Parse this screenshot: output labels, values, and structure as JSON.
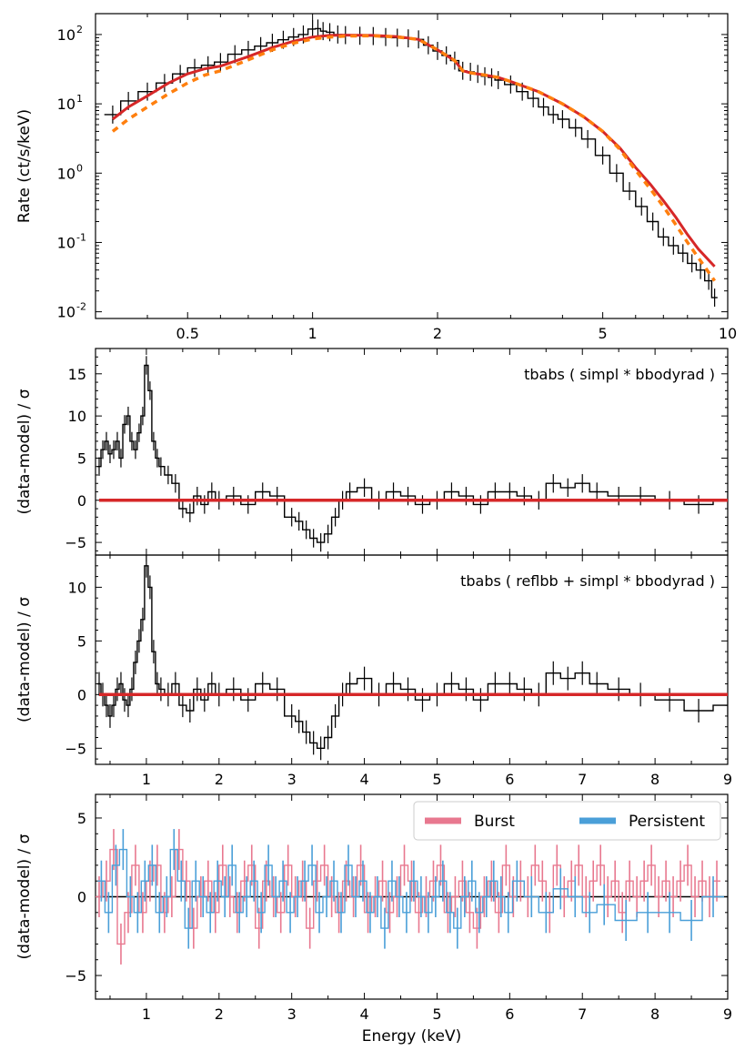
{
  "chart_data": [
    {
      "panel": "spectrum",
      "type": "line",
      "xscale": "log",
      "yscale": "log",
      "xlim": [
        0.3,
        10
      ],
      "ylim": [
        0.008,
        200
      ],
      "ylabel": "Rate (ct/s/keV)",
      "xlabel": "",
      "x_tick_labels": [
        "0.5",
        "1",
        "2",
        "5",
        "10"
      ],
      "x_ticks": [
        0.5,
        1,
        2,
        5,
        10
      ],
      "y_tick_labels": [
        "10",
        "10",
        "10",
        "10",
        "10"
      ],
      "y_tick_exponents": [
        "-2",
        "-1",
        "0",
        "1",
        "2"
      ],
      "y_ticks": [
        0.01,
        0.1,
        1,
        10,
        100
      ],
      "series": [
        {
          "style": "black-steps-with-errorbars",
          "color": "#000000",
          "x": [
            0.33,
            0.36,
            0.4,
            0.44,
            0.48,
            0.52,
            0.56,
            0.6,
            0.65,
            0.7,
            0.75,
            0.8,
            0.85,
            0.9,
            0.95,
            1.0,
            1.03,
            1.06,
            1.1,
            1.15,
            1.2,
            1.3,
            1.4,
            1.5,
            1.6,
            1.7,
            1.8,
            1.9,
            2.0,
            2.1,
            2.2,
            2.3,
            2.4,
            2.5,
            2.6,
            2.7,
            2.8,
            3.0,
            3.2,
            3.4,
            3.6,
            3.8,
            4.0,
            4.3,
            4.6,
            5.0,
            5.4,
            5.8,
            6.2,
            6.6,
            7.0,
            7.4,
            7.8,
            8.2,
            8.6,
            9.0,
            9.3
          ],
          "y": [
            7,
            11,
            15,
            20,
            27,
            33,
            36,
            40,
            52,
            60,
            68,
            76,
            84,
            92,
            100,
            120,
            122,
            112,
            108,
            100,
            98,
            96,
            95,
            92,
            90,
            88,
            85,
            70,
            58,
            50,
            42,
            30,
            29,
            27,
            25,
            24,
            22,
            19,
            15,
            12,
            9,
            7,
            6,
            4.5,
            3.1,
            1.8,
            1.0,
            0.55,
            0.33,
            0.2,
            0.12,
            0.09,
            0.07,
            0.05,
            0.04,
            0.028,
            0.016
          ]
        },
        {
          "style": "red-solid-model",
          "color": "#d62728",
          "x": [
            0.33,
            0.36,
            0.4,
            0.45,
            0.5,
            0.55,
            0.6,
            0.7,
            0.8,
            0.9,
            1.0,
            1.1,
            1.2,
            1.4,
            1.6,
            1.8,
            2.0,
            2.2,
            2.3,
            2.4,
            2.6,
            2.8,
            3.0,
            3.5,
            4.0,
            4.5,
            5.0,
            5.5,
            6.0,
            6.5,
            7.0,
            7.5,
            8.0,
            8.5,
            9.3
          ],
          "y": [
            6,
            9,
            13,
            20,
            27,
            32,
            35,
            48,
            65,
            80,
            92,
            97,
            98,
            97,
            93,
            85,
            60,
            42,
            30,
            28,
            26,
            24,
            21,
            15,
            10,
            6.5,
            4.0,
            2.3,
            1.2,
            0.7,
            0.4,
            0.23,
            0.13,
            0.08,
            0.045
          ]
        },
        {
          "style": "orange-dashed-model",
          "color": "#ff7f0e",
          "x": [
            0.33,
            0.36,
            0.4,
            0.45,
            0.5,
            0.55,
            0.6,
            0.7,
            0.8,
            0.9,
            1.0,
            1.1,
            1.2,
            1.4,
            1.6,
            1.8,
            2.0,
            2.2,
            2.3,
            2.4,
            2.6,
            2.8,
            3.0,
            3.5,
            4.0,
            4.5,
            5.0,
            5.5,
            6.0,
            6.5,
            7.0,
            7.5,
            8.0,
            8.5,
            9.3
          ],
          "y": [
            4,
            6,
            9,
            14,
            20,
            26,
            30,
            43,
            60,
            75,
            86,
            92,
            95,
            96,
            92,
            85,
            60,
            42,
            30,
            28,
            26,
            24,
            21,
            15,
            10,
            6.5,
            4.0,
            2.2,
            1.1,
            0.6,
            0.33,
            0.18,
            0.1,
            0.06,
            0.028
          ]
        }
      ]
    },
    {
      "panel": "residuals-1",
      "type": "line",
      "xlim": [
        0.3,
        9
      ],
      "ylim": [
        -6.5,
        18
      ],
      "ylabel": "(data-model) / σ",
      "annotation": "tbabs ( simpl * bbodyrad )",
      "y_tick_labels": [
        "−5",
        "0",
        "5",
        "10",
        "15"
      ],
      "y_ticks": [
        -5,
        0,
        5,
        10,
        15
      ],
      "x_ticks": [
        1,
        2,
        3,
        4,
        5,
        6,
        7,
        8,
        9
      ],
      "series": [
        {
          "style": "black-steps-with-errorbars",
          "color": "#000000",
          "x": [
            0.35,
            0.4,
            0.45,
            0.5,
            0.55,
            0.6,
            0.65,
            0.7,
            0.75,
            0.8,
            0.85,
            0.9,
            0.95,
            1.0,
            1.05,
            1.1,
            1.15,
            1.2,
            1.3,
            1.4,
            1.5,
            1.6,
            1.7,
            1.8,
            1.9,
            2.0,
            2.2,
            2.4,
            2.6,
            2.8,
            3.0,
            3.1,
            3.2,
            3.3,
            3.4,
            3.5,
            3.6,
            3.7,
            3.8,
            4.0,
            4.2,
            4.4,
            4.6,
            4.8,
            5.0,
            5.2,
            5.4,
            5.6,
            5.8,
            6.0,
            6.2,
            6.4,
            6.6,
            6.8,
            7.0,
            7.2,
            7.5,
            7.8,
            8.2,
            8.6,
            9.0
          ],
          "y": [
            4,
            6,
            7,
            5.5,
            6,
            7,
            5,
            9,
            10,
            7,
            6,
            8,
            10,
            16,
            13,
            7,
            5,
            4,
            3,
            2,
            -1,
            -1.5,
            0.5,
            -0.5,
            1,
            0,
            0.5,
            -0.5,
            1,
            0.5,
            -2,
            -2.5,
            -3.5,
            -4.5,
            -5,
            -4,
            -2,
            0,
            1,
            1.5,
            0,
            1,
            0.5,
            -0.5,
            0,
            1,
            0.5,
            -0.5,
            1,
            1,
            0.5,
            0,
            2,
            1.5,
            2,
            1,
            0.5,
            0.5,
            0,
            -0.5,
            0
          ]
        },
        {
          "style": "red-zero-line",
          "color": "#d62728",
          "x": [
            0.35,
            9
          ],
          "y": [
            0,
            0
          ]
        }
      ]
    },
    {
      "panel": "residuals-2",
      "type": "line",
      "xlim": [
        0.3,
        9
      ],
      "ylim": [
        -6.5,
        13
      ],
      "ylabel": "(data-model) / σ",
      "annotation": "tbabs ( reflbb + simpl * bbodyrad )",
      "y_tick_labels": [
        "−5",
        "0",
        "5",
        "10"
      ],
      "y_ticks": [
        -5,
        0,
        5,
        10
      ],
      "x_tick_labels": [
        "1",
        "2",
        "3",
        "4",
        "5",
        "6",
        "7",
        "8",
        "9"
      ],
      "x_ticks": [
        1,
        2,
        3,
        4,
        5,
        6,
        7,
        8,
        9
      ],
      "series": [
        {
          "style": "black-steps-with-errorbars",
          "color": "#000000",
          "x": [
            0.35,
            0.4,
            0.45,
            0.5,
            0.55,
            0.6,
            0.65,
            0.7,
            0.75,
            0.8,
            0.85,
            0.9,
            0.95,
            1.0,
            1.05,
            1.1,
            1.15,
            1.2,
            1.3,
            1.4,
            1.5,
            1.6,
            1.7,
            1.8,
            1.9,
            2.0,
            2.2,
            2.4,
            2.6,
            2.8,
            3.0,
            3.1,
            3.2,
            3.3,
            3.4,
            3.5,
            3.6,
            3.7,
            3.8,
            4.0,
            4.2,
            4.4,
            4.6,
            4.8,
            5.0,
            5.2,
            5.4,
            5.6,
            5.8,
            6.0,
            6.2,
            6.4,
            6.6,
            6.8,
            7.0,
            7.2,
            7.5,
            7.8,
            8.2,
            8.6,
            9.0
          ],
          "y": [
            1,
            0,
            -1,
            -2,
            -1,
            0.5,
            1,
            -0.5,
            -1,
            0.5,
            3,
            5,
            7,
            12,
            10,
            4,
            1,
            0.5,
            0,
            1,
            -1,
            -1.5,
            0.5,
            -0.5,
            1,
            0,
            0.5,
            -0.5,
            1,
            0.5,
            -2,
            -2.5,
            -3.5,
            -4.5,
            -5,
            -4,
            -2,
            0,
            1,
            1.5,
            0,
            1,
            0.5,
            -0.5,
            0,
            1,
            0.5,
            -0.5,
            1,
            1,
            0.5,
            0,
            2,
            1.5,
            2,
            1,
            0.5,
            0,
            -0.5,
            -1.5,
            -1
          ]
        },
        {
          "style": "red-zero-line",
          "color": "#d62728",
          "x": [
            0.35,
            9
          ],
          "y": [
            0,
            0
          ]
        }
      ]
    },
    {
      "panel": "residuals-3",
      "type": "line",
      "xlim": [
        0.3,
        9
      ],
      "ylim": [
        -6.5,
        6.5
      ],
      "ylabel": "(data-model) / σ",
      "xlabel": "Energy (keV)",
      "y_tick_labels": [
        "−5",
        "0",
        "5"
      ],
      "y_ticks": [
        -5,
        0,
        5
      ],
      "x_tick_labels": [
        "1",
        "2",
        "3",
        "4",
        "5",
        "6",
        "7",
        "8",
        "9"
      ],
      "x_ticks": [
        1,
        2,
        3,
        4,
        5,
        6,
        7,
        8,
        9
      ],
      "legend": {
        "placement": "top-right",
        "entries": [
          {
            "name": "Burst",
            "color": "#e8788f"
          },
          {
            "name": "Persistent",
            "color": "#4a9fd8"
          }
        ]
      },
      "series": [
        {
          "name": "Burst",
          "style": "pink-errorbars",
          "color": "#e8788f",
          "x": [
            0.35,
            0.45,
            0.55,
            0.65,
            0.75,
            0.85,
            0.95,
            1.05,
            1.15,
            1.25,
            1.35,
            1.45,
            1.55,
            1.65,
            1.75,
            1.85,
            1.95,
            2.05,
            2.15,
            2.25,
            2.35,
            2.45,
            2.55,
            2.65,
            2.75,
            2.85,
            2.95,
            3.05,
            3.15,
            3.25,
            3.35,
            3.45,
            3.55,
            3.65,
            3.75,
            3.85,
            3.95,
            4.05,
            4.15,
            4.25,
            4.35,
            4.45,
            4.55,
            4.65,
            4.75,
            4.85,
            4.95,
            5.05,
            5.15,
            5.25,
            5.35,
            5.45,
            5.55,
            5.65,
            5.75,
            5.85,
            5.95,
            6.05,
            6.15,
            6.25,
            6.35,
            6.45,
            6.55,
            6.65,
            6.75,
            6.85,
            6.95,
            7.05,
            7.15,
            7.25,
            7.35,
            7.45,
            7.55,
            7.65,
            7.75,
            7.85,
            7.95,
            8.05,
            8.15,
            8.25,
            8.35,
            8.45,
            8.55,
            8.65,
            8.75,
            8.85
          ],
          "y": [
            0,
            1,
            3,
            -3,
            -1,
            2,
            -1,
            1,
            2,
            -1,
            0,
            3,
            1,
            -2,
            0,
            1,
            -1,
            2,
            0,
            -1,
            1,
            2,
            -2,
            1,
            0,
            -1,
            2,
            0,
            1,
            -2,
            1,
            2,
            0,
            -1,
            1,
            0,
            2,
            -1,
            0,
            1,
            -1,
            0,
            2,
            1,
            -1,
            0,
            1,
            2,
            -1,
            0,
            1,
            -1,
            -2,
            0,
            1,
            -1,
            2,
            0,
            1,
            0,
            2,
            1,
            -1,
            2,
            0,
            1,
            2,
            0,
            1,
            2,
            0,
            1,
            -1,
            1,
            0,
            1,
            2,
            0,
            1,
            0,
            1,
            2,
            0,
            1,
            0,
            1
          ]
        },
        {
          "name": "Persistent",
          "style": "blue-errorbars",
          "color": "#4a9fd8",
          "x": [
            0.38,
            0.48,
            0.58,
            0.68,
            0.78,
            0.88,
            0.98,
            1.08,
            1.18,
            1.28,
            1.38,
            1.48,
            1.58,
            1.68,
            1.78,
            1.88,
            1.98,
            2.08,
            2.18,
            2.28,
            2.38,
            2.48,
            2.58,
            2.68,
            2.78,
            2.88,
            2.98,
            3.08,
            3.18,
            3.28,
            3.38,
            3.48,
            3.58,
            3.68,
            3.78,
            3.88,
            3.98,
            4.08,
            4.18,
            4.28,
            4.38,
            4.48,
            4.58,
            4.68,
            4.78,
            4.88,
            4.98,
            5.08,
            5.18,
            5.28,
            5.38,
            5.48,
            5.58,
            5.68,
            5.78,
            5.88,
            5.98,
            6.1,
            6.3,
            6.5,
            6.7,
            6.9,
            7.1,
            7.3,
            7.6,
            7.9,
            8.2,
            8.5,
            8.8
          ],
          "y": [
            1,
            -1,
            2,
            3,
            0,
            -1,
            1,
            2,
            -1,
            0,
            3,
            1,
            -2,
            1,
            0,
            -1,
            1,
            0,
            2,
            -1,
            0,
            1,
            -1,
            2,
            0,
            1,
            -1,
            0,
            1,
            2,
            -1,
            0,
            1,
            -1,
            2,
            0,
            1,
            -1,
            0,
            -2,
            1,
            0,
            -1,
            1,
            0,
            -1,
            0,
            1,
            -1,
            -2,
            0,
            1,
            -1,
            0,
            1,
            0,
            -1,
            1,
            0,
            -1,
            0.5,
            0,
            -1,
            -0.5,
            -1.5,
            -1,
            -1,
            -1.5,
            0
          ]
        }
      ]
    }
  ]
}
